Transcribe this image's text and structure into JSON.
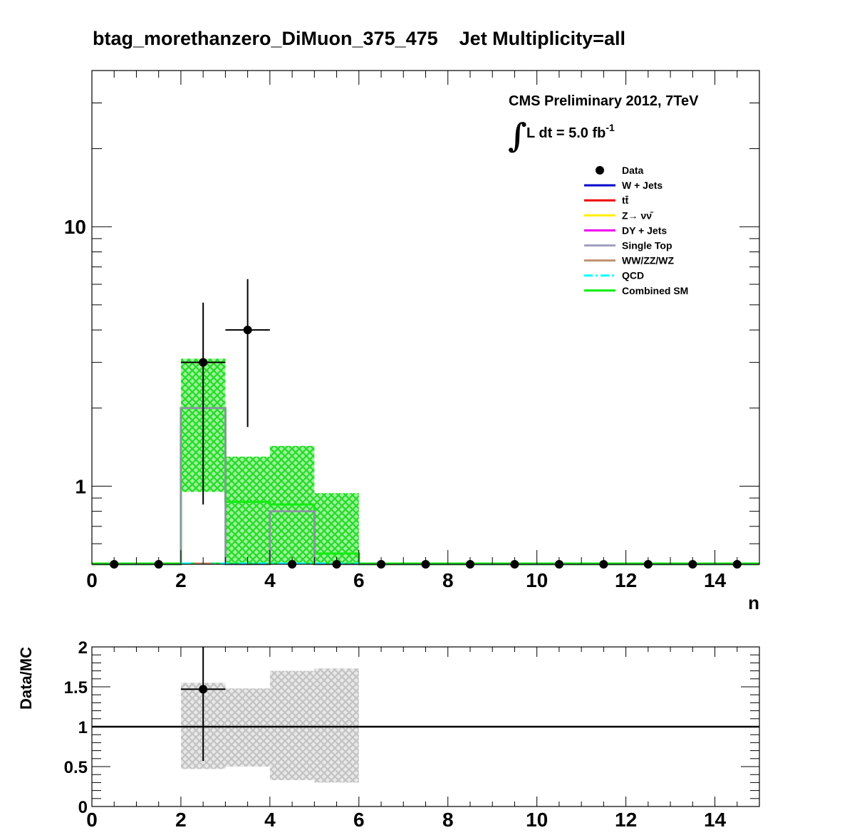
{
  "title": "btag_morethanzero_DiMuon_375_475    Jet Multiplicity=all",
  "cms_label": "CMS Preliminary 2012, 7TeV",
  "lumi_label": "L dt = 5.0 fb",
  "lumi_exponent": "-1",
  "integral_symbol": "∫",
  "chart_data": [
    {
      "type": "histogram",
      "panel": "main",
      "xlabel": "n",
      "ylabel": "",
      "xlim": [
        0,
        15
      ],
      "ylim": [
        0.5,
        40
      ],
      "yscale": "log",
      "x_ticks": [
        0,
        2,
        4,
        6,
        8,
        10,
        12,
        14
      ],
      "y_tick_labels": [
        "1",
        "10"
      ],
      "bin_edges": [
        0,
        1,
        2,
        3,
        4,
        5,
        6,
        7,
        8,
        9,
        10,
        11,
        12,
        13,
        14,
        15
      ],
      "legend": [
        {
          "name": "Data",
          "color": "#000000",
          "style": "marker"
        },
        {
          "name": "W + Jets",
          "color": "#0000cc",
          "style": "line"
        },
        {
          "name": "tt̄",
          "color": "#ee0000",
          "style": "line"
        },
        {
          "name": "Z→ νν̄",
          "color": "#ffee00",
          "style": "line"
        },
        {
          "name": "DY + Jets",
          "color": "#ee00ee",
          "style": "line"
        },
        {
          "name": "Single Top",
          "color": "#a0a0c0",
          "style": "line"
        },
        {
          "name": "WW/ZZ/WZ",
          "color": "#c09070",
          "style": "line"
        },
        {
          "name": "QCD",
          "color": "#00ffff",
          "style": "dashdot"
        },
        {
          "name": "Combined SM",
          "color": "#00ee00",
          "style": "line"
        }
      ],
      "legend_position": "top-right",
      "data": {
        "x": [
          0.5,
          1.5,
          2.5,
          3.5,
          4.5,
          5.5,
          6.5,
          7.5,
          8.5,
          9.5,
          10.5,
          11.5,
          12.5,
          13.5,
          14.5
        ],
        "y": [
          0,
          0,
          3,
          4,
          0,
          0,
          0,
          0,
          0,
          0,
          0,
          0,
          0,
          0,
          0
        ],
        "yerr_low": [
          0,
          0,
          2.15,
          2.31,
          0,
          0,
          0,
          0,
          0,
          0,
          0,
          0,
          0,
          0,
          0
        ],
        "yerr_high": [
          0,
          0,
          2.1,
          2.28,
          0,
          0,
          0,
          0,
          0,
          0,
          0,
          0,
          0,
          0,
          0
        ],
        "xerr": 0.5
      },
      "combined_sm": [
        0,
        0,
        2.0,
        0.87,
        0.85,
        0.55,
        0,
        0,
        0,
        0,
        0,
        0,
        0,
        0,
        0
      ],
      "combined_sm_band_low": [
        0,
        0,
        0.95,
        0.5,
        0.5,
        0.5,
        0,
        0,
        0,
        0,
        0,
        0,
        0,
        0,
        0
      ],
      "combined_sm_band_high": [
        0,
        0,
        3.1,
        1.3,
        1.43,
        0.94,
        0,
        0,
        0,
        0,
        0,
        0,
        0,
        0,
        0
      ],
      "single_top": [
        0,
        0,
        2.0,
        0.5,
        0.8,
        0,
        0,
        0,
        0,
        0,
        0,
        0,
        0,
        0,
        0
      ]
    },
    {
      "type": "ratio",
      "panel": "ratio",
      "xlabel": "",
      "ylabel": "Data/MC",
      "xlim": [
        0,
        15
      ],
      "ylim": [
        0,
        2
      ],
      "x_ticks": [
        0,
        2,
        4,
        6,
        8,
        10,
        12,
        14
      ],
      "y_ticks": [
        0,
        0.5,
        1,
        1.5,
        2
      ],
      "y_tick_labels": [
        "0",
        "0.5",
        "1",
        "1.5",
        "2"
      ],
      "reference_line": 1,
      "band": {
        "bins": [
          [
            2,
            3
          ],
          [
            3,
            4
          ],
          [
            4,
            5
          ],
          [
            5,
            6
          ]
        ],
        "low": [
          0.47,
          0.5,
          0.33,
          0.3
        ],
        "high": [
          1.55,
          1.48,
          1.7,
          1.73
        ]
      },
      "points": {
        "x": [
          2.5
        ],
        "y": [
          1.47
        ],
        "yerr_low": [
          0.9
        ],
        "yerr_high": [
          0.6
        ],
        "xerr": 0.5
      }
    }
  ]
}
